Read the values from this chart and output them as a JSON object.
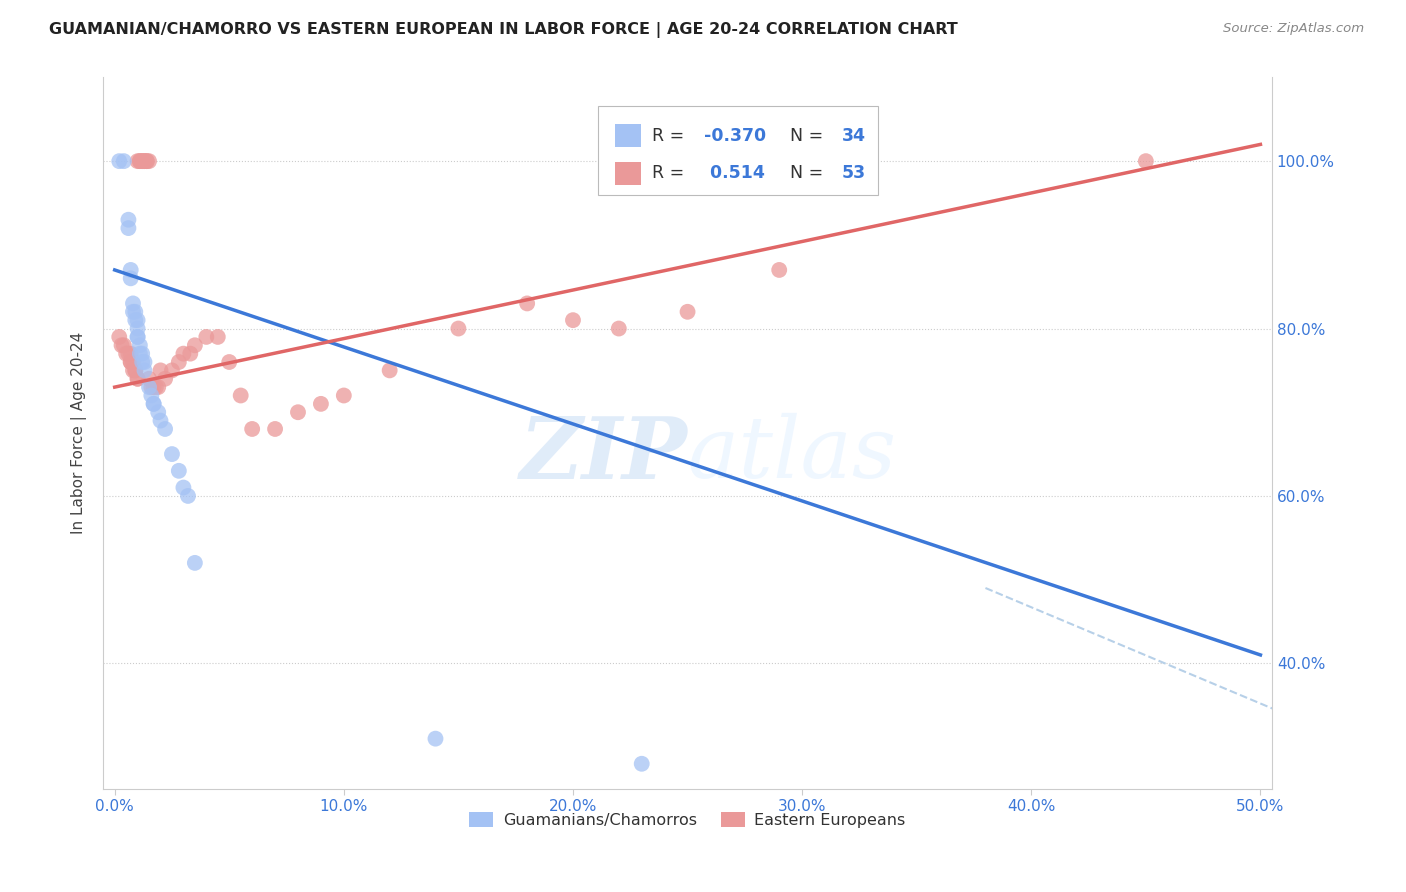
{
  "title": "GUAMANIAN/CHAMORRO VS EASTERN EUROPEAN IN LABOR FORCE | AGE 20-24 CORRELATION CHART",
  "source": "Source: ZipAtlas.com",
  "ylabel": "In Labor Force | Age 20-24",
  "x_tick_labels": [
    "0.0%",
    "10.0%",
    "20.0%",
    "30.0%",
    "40.0%",
    "50.0%"
  ],
  "x_tick_values": [
    0.0,
    0.1,
    0.2,
    0.3,
    0.4,
    0.5
  ],
  "y_tick_labels": [
    "40.0%",
    "60.0%",
    "80.0%",
    "100.0%"
  ],
  "y_tick_values": [
    0.4,
    0.6,
    0.8,
    1.0
  ],
  "xlim": [
    -0.005,
    0.505
  ],
  "ylim": [
    0.25,
    1.1
  ],
  "legend_R_blue": "-0.370",
  "legend_N_blue": "34",
  "legend_R_pink": " 0.514",
  "legend_N_pink": "53",
  "blue_color": "#a4c2f4",
  "pink_color": "#ea9999",
  "blue_line_color": "#3c78d8",
  "pink_line_color": "#e06666",
  "dashed_line_color": "#b7d0e8",
  "watermark_zip": "ZIP",
  "watermark_atlas": "atlas",
  "blue_dots": [
    [
      0.002,
      1.0
    ],
    [
      0.004,
      1.0
    ],
    [
      0.006,
      0.93
    ],
    [
      0.006,
      0.92
    ],
    [
      0.007,
      0.87
    ],
    [
      0.007,
      0.86
    ],
    [
      0.008,
      0.83
    ],
    [
      0.008,
      0.82
    ],
    [
      0.009,
      0.82
    ],
    [
      0.009,
      0.81
    ],
    [
      0.01,
      0.81
    ],
    [
      0.01,
      0.8
    ],
    [
      0.01,
      0.79
    ],
    [
      0.01,
      0.79
    ],
    [
      0.011,
      0.78
    ],
    [
      0.011,
      0.77
    ],
    [
      0.012,
      0.77
    ],
    [
      0.012,
      0.76
    ],
    [
      0.013,
      0.76
    ],
    [
      0.013,
      0.75
    ],
    [
      0.015,
      0.73
    ],
    [
      0.016,
      0.72
    ],
    [
      0.017,
      0.71
    ],
    [
      0.017,
      0.71
    ],
    [
      0.019,
      0.7
    ],
    [
      0.02,
      0.69
    ],
    [
      0.022,
      0.68
    ],
    [
      0.025,
      0.65
    ],
    [
      0.028,
      0.63
    ],
    [
      0.03,
      0.61
    ],
    [
      0.032,
      0.6
    ],
    [
      0.035,
      0.52
    ],
    [
      0.14,
      0.31
    ],
    [
      0.23,
      0.28
    ]
  ],
  "pink_dots": [
    [
      0.002,
      0.79
    ],
    [
      0.003,
      0.78
    ],
    [
      0.004,
      0.78
    ],
    [
      0.005,
      0.77
    ],
    [
      0.006,
      0.77
    ],
    [
      0.007,
      0.77
    ],
    [
      0.007,
      0.76
    ],
    [
      0.007,
      0.76
    ],
    [
      0.008,
      0.76
    ],
    [
      0.008,
      0.75
    ],
    [
      0.009,
      0.75
    ],
    [
      0.009,
      0.75
    ],
    [
      0.01,
      0.74
    ],
    [
      0.01,
      0.74
    ],
    [
      0.01,
      1.0
    ],
    [
      0.011,
      1.0
    ],
    [
      0.011,
      1.0
    ],
    [
      0.012,
      1.0
    ],
    [
      0.012,
      1.0
    ],
    [
      0.013,
      1.0
    ],
    [
      0.013,
      1.0
    ],
    [
      0.014,
      1.0
    ],
    [
      0.014,
      1.0
    ],
    [
      0.015,
      1.0
    ],
    [
      0.015,
      0.74
    ],
    [
      0.016,
      0.73
    ],
    [
      0.017,
      0.73
    ],
    [
      0.018,
      0.73
    ],
    [
      0.019,
      0.73
    ],
    [
      0.02,
      0.75
    ],
    [
      0.022,
      0.74
    ],
    [
      0.025,
      0.75
    ],
    [
      0.028,
      0.76
    ],
    [
      0.03,
      0.77
    ],
    [
      0.033,
      0.77
    ],
    [
      0.035,
      0.78
    ],
    [
      0.04,
      0.79
    ],
    [
      0.045,
      0.79
    ],
    [
      0.05,
      0.76
    ],
    [
      0.055,
      0.72
    ],
    [
      0.06,
      0.68
    ],
    [
      0.07,
      0.68
    ],
    [
      0.08,
      0.7
    ],
    [
      0.09,
      0.71
    ],
    [
      0.1,
      0.72
    ],
    [
      0.12,
      0.75
    ],
    [
      0.15,
      0.8
    ],
    [
      0.18,
      0.83
    ],
    [
      0.2,
      0.81
    ],
    [
      0.22,
      0.8
    ],
    [
      0.25,
      0.82
    ],
    [
      0.29,
      0.87
    ],
    [
      0.45,
      1.0
    ]
  ],
  "blue_line_x": [
    0.0,
    0.5
  ],
  "blue_line_y": [
    0.87,
    0.41
  ],
  "pink_line_x": [
    0.0,
    0.5
  ],
  "pink_line_y": [
    0.73,
    1.02
  ],
  "dashed_line_x": [
    0.38,
    0.58
  ],
  "dashed_line_y": [
    0.49,
    0.26
  ]
}
